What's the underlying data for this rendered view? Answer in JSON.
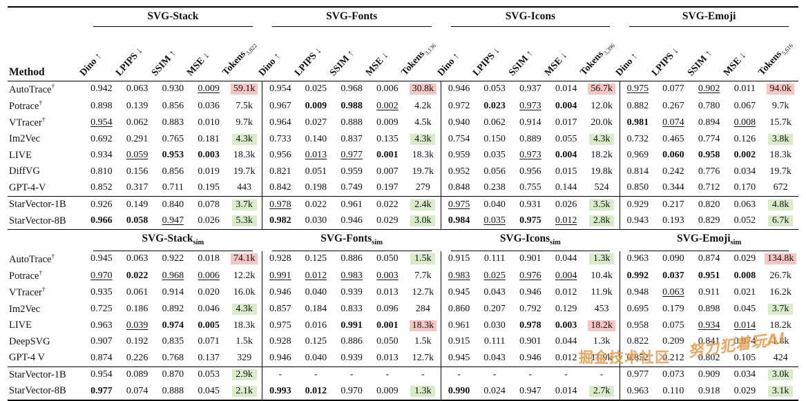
{
  "colors": {
    "highlight_red": "#f8c6c2",
    "highlight_green": "#d9ecca"
  },
  "metrics": [
    "Dino",
    "LPIPS",
    "SSIM",
    "MSE",
    "Tokens"
  ],
  "metric_arrows": [
    "↑",
    "↓",
    "↑",
    "↓",
    ""
  ],
  "watermarks": [
    {
      "text": "掘金技术社区"
    },
    {
      "text": "努力犯着玩AI"
    }
  ],
  "tables": [
    {
      "id": "main",
      "method_header": "Method",
      "rotated": true,
      "groups": [
        {
          "name": "SVG-Stack",
          "sub": "",
          "tokens_sub": "3,822"
        },
        {
          "name": "SVG-Fonts",
          "sub": "",
          "tokens_sub": "3,136"
        },
        {
          "name": "SVG-Icons",
          "sub": "",
          "tokens_sub": "3,396"
        },
        {
          "name": "SVG-Emoji",
          "sub": "",
          "tokens_sub": "5,616"
        }
      ],
      "rows": [
        {
          "method": "AutoTrace†",
          "sec": "base",
          "cells": [
            "0.942",
            "0.063",
            "0.930",
            "0.009|u",
            "59.1k|r",
            "0.954",
            "0.025",
            "0.968",
            "0.006",
            "30.8k|r",
            "0.946",
            "0.053",
            "0.937",
            "0.014",
            "56.7k|r",
            "0.975|u",
            "0.077",
            "0.902|u",
            "0.011",
            "94.0k|r"
          ]
        },
        {
          "method": "Potrace†",
          "sec": "base",
          "cells": [
            "0.898",
            "0.139",
            "0.856",
            "0.036",
            "7.5k",
            "0.967",
            "0.009|b",
            "0.988|b",
            "0.002|u",
            "4.2k",
            "0.972",
            "0.023|b",
            "0.973|u",
            "0.004|b",
            "12.0k",
            "0.882",
            "0.267",
            "0.780",
            "0.067",
            "9.7k"
          ]
        },
        {
          "method": "VTracer†",
          "sec": "base",
          "cells": [
            "0.954|u",
            "0.062",
            "0.883",
            "0.010",
            "9.7k",
            "0.964",
            "0.027",
            "0.888",
            "0.009",
            "4.5k",
            "0.940",
            "0.062",
            "0.914",
            "0.017",
            "20.0k",
            "0.981|b",
            "0.074|u",
            "0.894",
            "0.008|u",
            "15.7k"
          ]
        },
        {
          "method": "Im2Vec",
          "sec": "base",
          "cells": [
            "0.692",
            "0.291",
            "0.765",
            "0.181",
            "4.3k|g",
            "0.733",
            "0.140",
            "0.837",
            "0.135",
            "4.3k|g",
            "0.754",
            "0.150",
            "0.889",
            "0.055",
            "4.3k|g",
            "0.732",
            "0.465",
            "0.774",
            "0.126",
            "3.8k|g"
          ]
        },
        {
          "method": "LIVE",
          "sec": "base",
          "cells": [
            "0.934",
            "0.059|u",
            "0.953|b",
            "0.003|b",
            "18.3k",
            "0.956",
            "0.013|u",
            "0.977|u",
            "0.001|b",
            "18.3k",
            "0.959",
            "0.035",
            "0.973|u",
            "0.004|b",
            "18.2k",
            "0.969",
            "0.060|b",
            "0.958|b",
            "0.002|b",
            "18.3k"
          ]
        },
        {
          "method": "DiffVG",
          "sec": "base",
          "cells": [
            "0.810",
            "0.156",
            "0.856",
            "0.019",
            "19.7k",
            "0.821",
            "0.051",
            "0.959",
            "0.007",
            "19.7k",
            "0.952",
            "0.056",
            "0.956",
            "0.015",
            "19.8k",
            "0.814",
            "0.242",
            "0.776",
            "0.034",
            "19.7k"
          ]
        },
        {
          "method": "GPT-4-V",
          "sec": "base",
          "cells": [
            "0.852",
            "0.317",
            "0.711",
            "0.195",
            "443",
            "0.842",
            "0.198",
            "0.749",
            "0.197",
            "279",
            "0.848",
            "0.238",
            "0.755",
            "0.144",
            "524",
            "0.850",
            "0.344",
            "0.712",
            "0.170",
            "672"
          ]
        },
        {
          "method": "StarVector-1B",
          "sec": "ours",
          "cells": [
            "0.926",
            "0.149",
            "0.840",
            "0.078",
            "3.7k|g",
            "0.978|u",
            "0.022",
            "0.961",
            "0.022",
            "2.4k|g",
            "0.975|u",
            "0.040",
            "0.931",
            "0.026",
            "3.5k|g",
            "0.929",
            "0.217",
            "0.820",
            "0.063",
            "4.8k|g"
          ]
        },
        {
          "method": "StarVector-8B",
          "sec": "ours",
          "cells": [
            "0.966|b",
            "0.058|b",
            "0.947|u",
            "0.026",
            "5.3k|g",
            "0.982|b",
            "0.030",
            "0.946",
            "0.029",
            "3.0k|g",
            "0.984|b",
            "0.035|u",
            "0.975|b",
            "0.012|u",
            "2.8k|g",
            "0.943",
            "0.193",
            "0.829",
            "0.052",
            "6.7k|g"
          ]
        }
      ]
    },
    {
      "id": "sim",
      "method_header": "",
      "rotated": false,
      "groups": [
        {
          "name": "SVG-Stack",
          "sub": "sim",
          "tokens_sub": ""
        },
        {
          "name": "SVG-Fonts",
          "sub": "sim",
          "tokens_sub": ""
        },
        {
          "name": "SVG-Icons",
          "sub": "sim",
          "tokens_sub": ""
        },
        {
          "name": "SVG-Emoji",
          "sub": "sim",
          "tokens_sub": ""
        }
      ],
      "rows": [
        {
          "method": "AutoTrace†",
          "sec": "base",
          "cells": [
            "0.945",
            "0.063",
            "0.922",
            "0.018",
            "74.1k|r",
            "0.928",
            "0.125",
            "0.886",
            "0.050",
            "1.5k|g",
            "0.915",
            "0.111",
            "0.901",
            "0.044",
            "1.3k|g",
            "0.963",
            "0.090",
            "0.874",
            "0.029",
            "134.8k|r"
          ]
        },
        {
          "method": "Potrace†",
          "sec": "base",
          "cells": [
            "0.970|u",
            "0.022|b",
            "0.968|u",
            "0.006|u",
            "12.2k",
            "0.991|u",
            "0.012|u",
            "0.983|u",
            "0.003|u",
            "7.7k",
            "0.983|u",
            "0.025|u",
            "0.976|u",
            "0.004|u",
            "10.4k",
            "0.992|b",
            "0.037|b",
            "0.951|b",
            "0.008|b",
            "26.7k"
          ]
        },
        {
          "method": "VTracer†",
          "sec": "base",
          "cells": [
            "0.935",
            "0.061",
            "0.914",
            "0.020",
            "16.0k",
            "0.946",
            "0.040",
            "0.939",
            "0.013",
            "12.7k",
            "0.945",
            "0.043",
            "0.946",
            "0.012",
            "11.9k",
            "0.948",
            "0.063|u",
            "0.911",
            "0.021",
            "16.2k"
          ]
        },
        {
          "method": "Im2Vec",
          "sec": "base",
          "cells": [
            "0.725",
            "0.186",
            "0.892",
            "0.046",
            "4.3k|g",
            "0.857",
            "0.184",
            "0.833",
            "0.096",
            "284",
            "0.860",
            "0.207",
            "0.792",
            "0.129",
            "453",
            "0.695",
            "0.179",
            "0.898",
            "0.045",
            "3.7k|g"
          ]
        },
        {
          "method": "LIVE",
          "sec": "base",
          "cells": [
            "0.963",
            "0.039|u",
            "0.974|b",
            "0.005|b",
            "18.3k",
            "0.975",
            "0.016",
            "0.991|b",
            "0.001|b",
            "18.3k|r",
            "0.961",
            "0.030",
            "0.978|b",
            "0.003|b",
            "18.2k|r",
            "0.958",
            "0.075",
            "0.934|u",
            "0.014|u",
            "18.2k"
          ]
        },
        {
          "method": "DeepSVG",
          "sec": "base",
          "cells": [
            "0.907",
            "0.192",
            "0.835",
            "0.071",
            "1.5k",
            "0.928",
            "0.125",
            "0.886",
            "0.050",
            "1.5k",
            "0.915",
            "0.111",
            "0.901",
            "0.044",
            "1.3k",
            "0.822",
            "0.209",
            "0.841",
            "0.074",
            "1.8k"
          ]
        },
        {
          "method": "GPT-4 V",
          "sec": "base",
          "cells": [
            "0.874",
            "0.226",
            "0.768",
            "0.137",
            "329",
            "0.946",
            "0.040",
            "0.939",
            "0.013",
            "12.7k",
            "0.945",
            "0.043",
            "0.946",
            "0.012",
            "11.9k",
            "0.852",
            "0.212",
            "0.802",
            "0.105",
            "424"
          ]
        },
        {
          "method": "StarVector-1B",
          "sec": "ours",
          "cells": [
            "0.954",
            "0.089",
            "0.870",
            "0.053",
            "2.9k|g",
            "-",
            "-",
            "-",
            "-",
            "-",
            "-",
            "-",
            "-",
            "-",
            "-",
            "0.977",
            "0.073",
            "0.909",
            "0.034",
            "3.0k|g"
          ]
        },
        {
          "method": "StarVector-8B",
          "sec": "ours",
          "cells": [
            "0.977|b",
            "0.074",
            "0.888",
            "0.045",
            "2.1k|g",
            "0.993|b",
            "0.012|b",
            "0.970",
            "0.009",
            "1.3k|g",
            "0.990|b",
            "0.024",
            "0.947",
            "0.014",
            "2.7k|g",
            "0.963",
            "0.110",
            "0.918",
            "0.029",
            "3.1k|g"
          ]
        }
      ]
    }
  ]
}
